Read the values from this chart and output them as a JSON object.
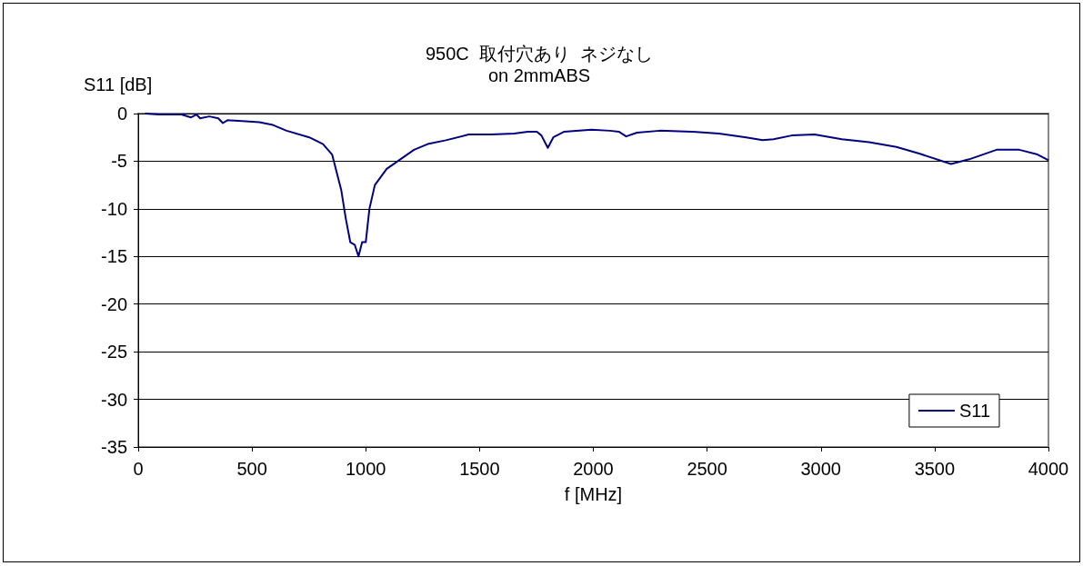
{
  "chart_data": {
    "type": "line",
    "title": "950C  取付穴あり  ネジなし",
    "subtitle": "on 2mmABS",
    "xlabel": "f [MHz]",
    "ylabel": "S11 [dB]",
    "xlim": [
      0,
      4000
    ],
    "xticks": [
      0,
      500,
      1000,
      1500,
      2000,
      2500,
      3000,
      3500,
      4000
    ],
    "ylim": [
      -35,
      0
    ],
    "yticks": [
      -35,
      -30,
      -25,
      -20,
      -15,
      -10,
      -5,
      0
    ],
    "grid": "y",
    "legend": "bottom right",
    "marker": "none",
    "line_style": "solid",
    "series": [
      {
        "name": "S11",
        "color": "#000080",
        "x": [
          30,
          90,
          190,
          232,
          256,
          272,
          312,
          352,
          372,
          392,
          472,
          532,
          592,
          652,
          752,
          812,
          852,
          892,
          912,
          932,
          952,
          968,
          984,
          1000,
          1016,
          1040,
          1092,
          1152,
          1212,
          1272,
          1352,
          1452,
          1552,
          1652,
          1712,
          1752,
          1772,
          1800,
          1824,
          1872,
          1992,
          2072,
          2112,
          2144,
          2192,
          2292,
          2432,
          2552,
          2672,
          2744,
          2792,
          2872,
          2972,
          3092,
          3212,
          3332,
          3432,
          3572,
          3652,
          3772,
          3872,
          3952,
          4000
        ],
        "values": [
          0,
          -0.1,
          -0.1,
          -0.4,
          -0.1,
          -0.5,
          -0.3,
          -0.5,
          -1.0,
          -0.7,
          -0.8,
          -0.9,
          -1.2,
          -1.8,
          -2.5,
          -3.2,
          -4.3,
          -8,
          -11,
          -13.5,
          -13.8,
          -15,
          -13.5,
          -13.5,
          -10,
          -7.5,
          -5.8,
          -4.8,
          -3.8,
          -3.2,
          -2.8,
          -2.2,
          -2.2,
          -2.1,
          -1.9,
          -1.9,
          -2.3,
          -3.6,
          -2.5,
          -1.9,
          -1.7,
          -1.8,
          -1.9,
          -2.4,
          -2.0,
          -1.8,
          -1.9,
          -2.1,
          -2.5,
          -2.8,
          -2.7,
          -2.3,
          -2.2,
          -2.7,
          -3.0,
          -3.5,
          -4.2,
          -5.3,
          -4.8,
          -3.8,
          -3.8,
          -4.3,
          -4.9
        ]
      }
    ]
  }
}
